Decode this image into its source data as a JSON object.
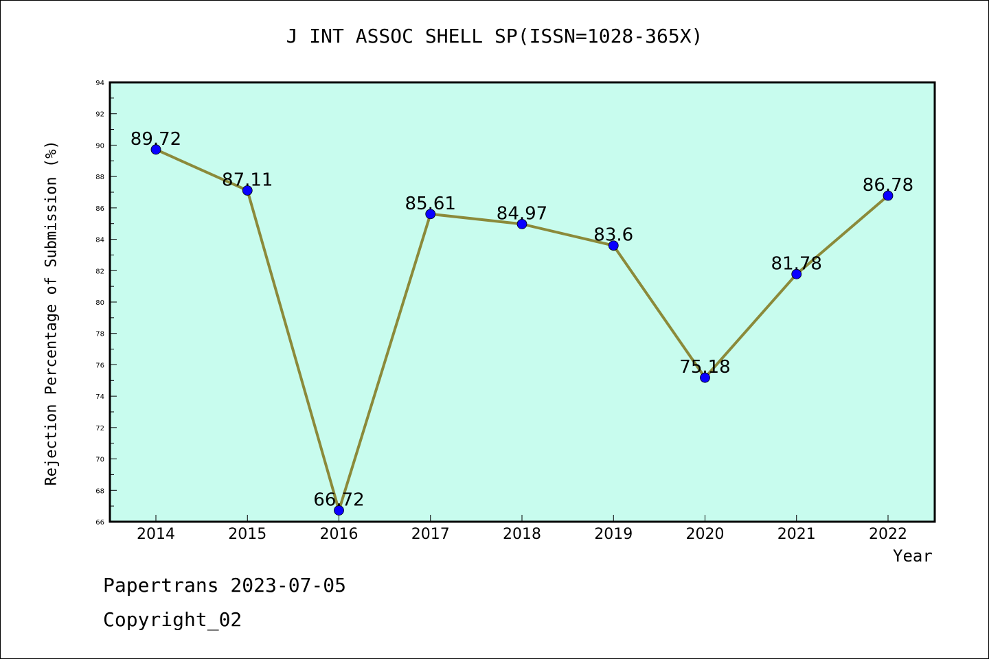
{
  "chart_data": {
    "type": "line",
    "title": "J INT ASSOC SHELL SP(ISSN=1028-365X)",
    "xlabel": "Year",
    "ylabel": "Rejection Percentage of Submission (%)",
    "categories": [
      "2014",
      "2015",
      "2016",
      "2017",
      "2018",
      "2019",
      "2020",
      "2021",
      "2022"
    ],
    "series": [
      {
        "values": [
          89.72,
          87.11,
          66.72,
          85.61,
          84.97,
          83.6,
          75.18,
          81.78,
          86.78
        ],
        "data_labels": [
          "89.72",
          "87.11",
          "66.72",
          "85.61",
          "84.97",
          "83.6",
          "75.18",
          "81.78",
          "86.78"
        ]
      }
    ],
    "ylim": [
      66,
      94
    ],
    "yticks": [
      "66",
      "68",
      "70",
      "72",
      "74",
      "76",
      "78",
      "80",
      "82",
      "84",
      "86",
      "88",
      "90",
      "92",
      "94"
    ],
    "grid": false,
    "colors": {
      "plot_background": "#c8fcee",
      "line": "#8b8a3a",
      "marker": "#0a00ff",
      "axis": "#000000"
    }
  },
  "footer": {
    "line1": "Papertrans 2023-07-05",
    "line2": "Copyright_02"
  }
}
